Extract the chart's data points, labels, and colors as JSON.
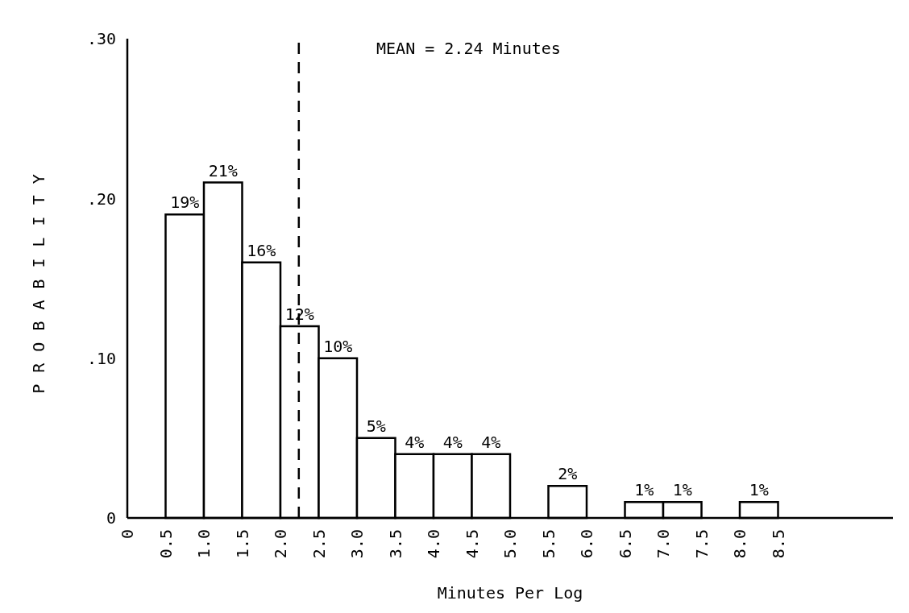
{
  "chart_data": {
    "type": "histogram",
    "bins": [
      0.5,
      1.0,
      1.5,
      2.0,
      2.5,
      3.0,
      3.5,
      4.0,
      4.5,
      5.0,
      5.5,
      6.0,
      6.5,
      7.0,
      7.5,
      8.0,
      8.5
    ],
    "values": [
      0.19,
      0.21,
      0.16,
      0.12,
      0.1,
      0.05,
      0.04,
      0.04,
      0.04,
      0,
      0.02,
      0,
      0.01,
      0.01,
      0,
      0.01
    ],
    "value_labels": [
      "19%",
      "21%",
      "16%",
      "12%",
      "10%",
      "5%",
      "4%",
      "4%",
      "4%",
      null,
      "2%",
      null,
      "1%",
      "1%",
      null,
      "1%"
    ],
    "color": "#ffffff",
    "xlabel": "Minutes Per Log",
    "ylabel": "PROBABILITY",
    "xlim": [
      0,
      10
    ],
    "xticks": [
      0,
      {
        "value": 0.5,
        "label": "0.5"
      },
      {
        "value": 1,
        "label": "1.0"
      },
      {
        "value": 1.5,
        "label": "1.5"
      },
      {
        "value": 2,
        "label": "2.0"
      },
      {
        "value": 2.5,
        "label": "2.5"
      },
      {
        "value": 3,
        "label": "3.0"
      },
      {
        "value": 3.5,
        "label": "3.5"
      },
      {
        "value": 4,
        "label": "4.0"
      },
      {
        "value": 4.5,
        "label": "4.5"
      },
      {
        "value": 5,
        "label": "5.0"
      },
      {
        "value": 5.5,
        "label": "5.5"
      },
      {
        "value": 6,
        "label": "6.0"
      },
      {
        "value": 6.5,
        "label": "6.5"
      },
      {
        "value": 7,
        "label": "7.0"
      },
      {
        "value": 7.5,
        "label": "7.5"
      },
      {
        "value": 8,
        "label": "8.0"
      },
      {
        "value": 8.5,
        "label": "8.5"
      }
    ],
    "ylim": [
      0,
      0.3
    ],
    "yticks": [
      0,
      {
        "value": 0.1,
        "label": ".10"
      },
      {
        "value": 0.2,
        "label": ".20"
      },
      {
        "value": 0.3,
        "label": ".30"
      }
    ],
    "ref_lines": [
      {
        "axis": "x",
        "value": 2.24,
        "label": "MEAN = 2.24 Minutes",
        "line_style": "dashed"
      }
    ],
    "tick_labels": "xy"
  }
}
